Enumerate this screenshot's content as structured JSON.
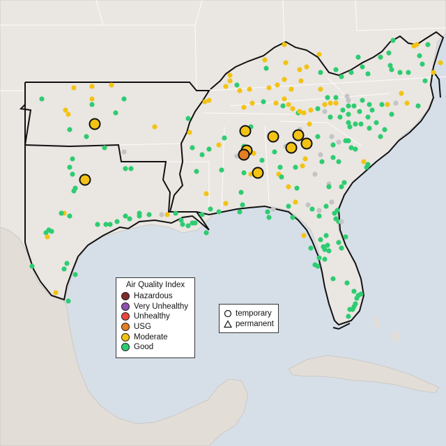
{
  "legend": {
    "title": "Air Quality Index",
    "categories": [
      {
        "label": "Hazardous",
        "color": "#7e2a2a"
      },
      {
        "label": "Very Unhealthy",
        "color": "#8f4fb0"
      },
      {
        "label": "Unhealthy",
        "color": "#e8483a"
      },
      {
        "label": "USG",
        "color": "#e67e22"
      },
      {
        "label": "Moderate",
        "color": "#f2c314"
      },
      {
        "label": "Good",
        "color": "#2ecc71"
      }
    ]
  },
  "monitor_legend": {
    "temporary": "temporary",
    "permanent": "permanent"
  },
  "colors": {
    "water": "#d6dfe8",
    "land": "#eae6e2",
    "no_data": "#c4c4c4"
  },
  "large_markers": [
    {
      "category": "Moderate"
    },
    {
      "category": "Moderate"
    },
    {
      "category": "Moderate"
    },
    {
      "category": "Moderate"
    },
    {
      "category": "Moderate"
    },
    {
      "category": "Moderate"
    },
    {
      "category": "Moderate"
    },
    {
      "category": "Moderate"
    },
    {
      "category": "Moderate"
    },
    {
      "category": "USG"
    }
  ]
}
